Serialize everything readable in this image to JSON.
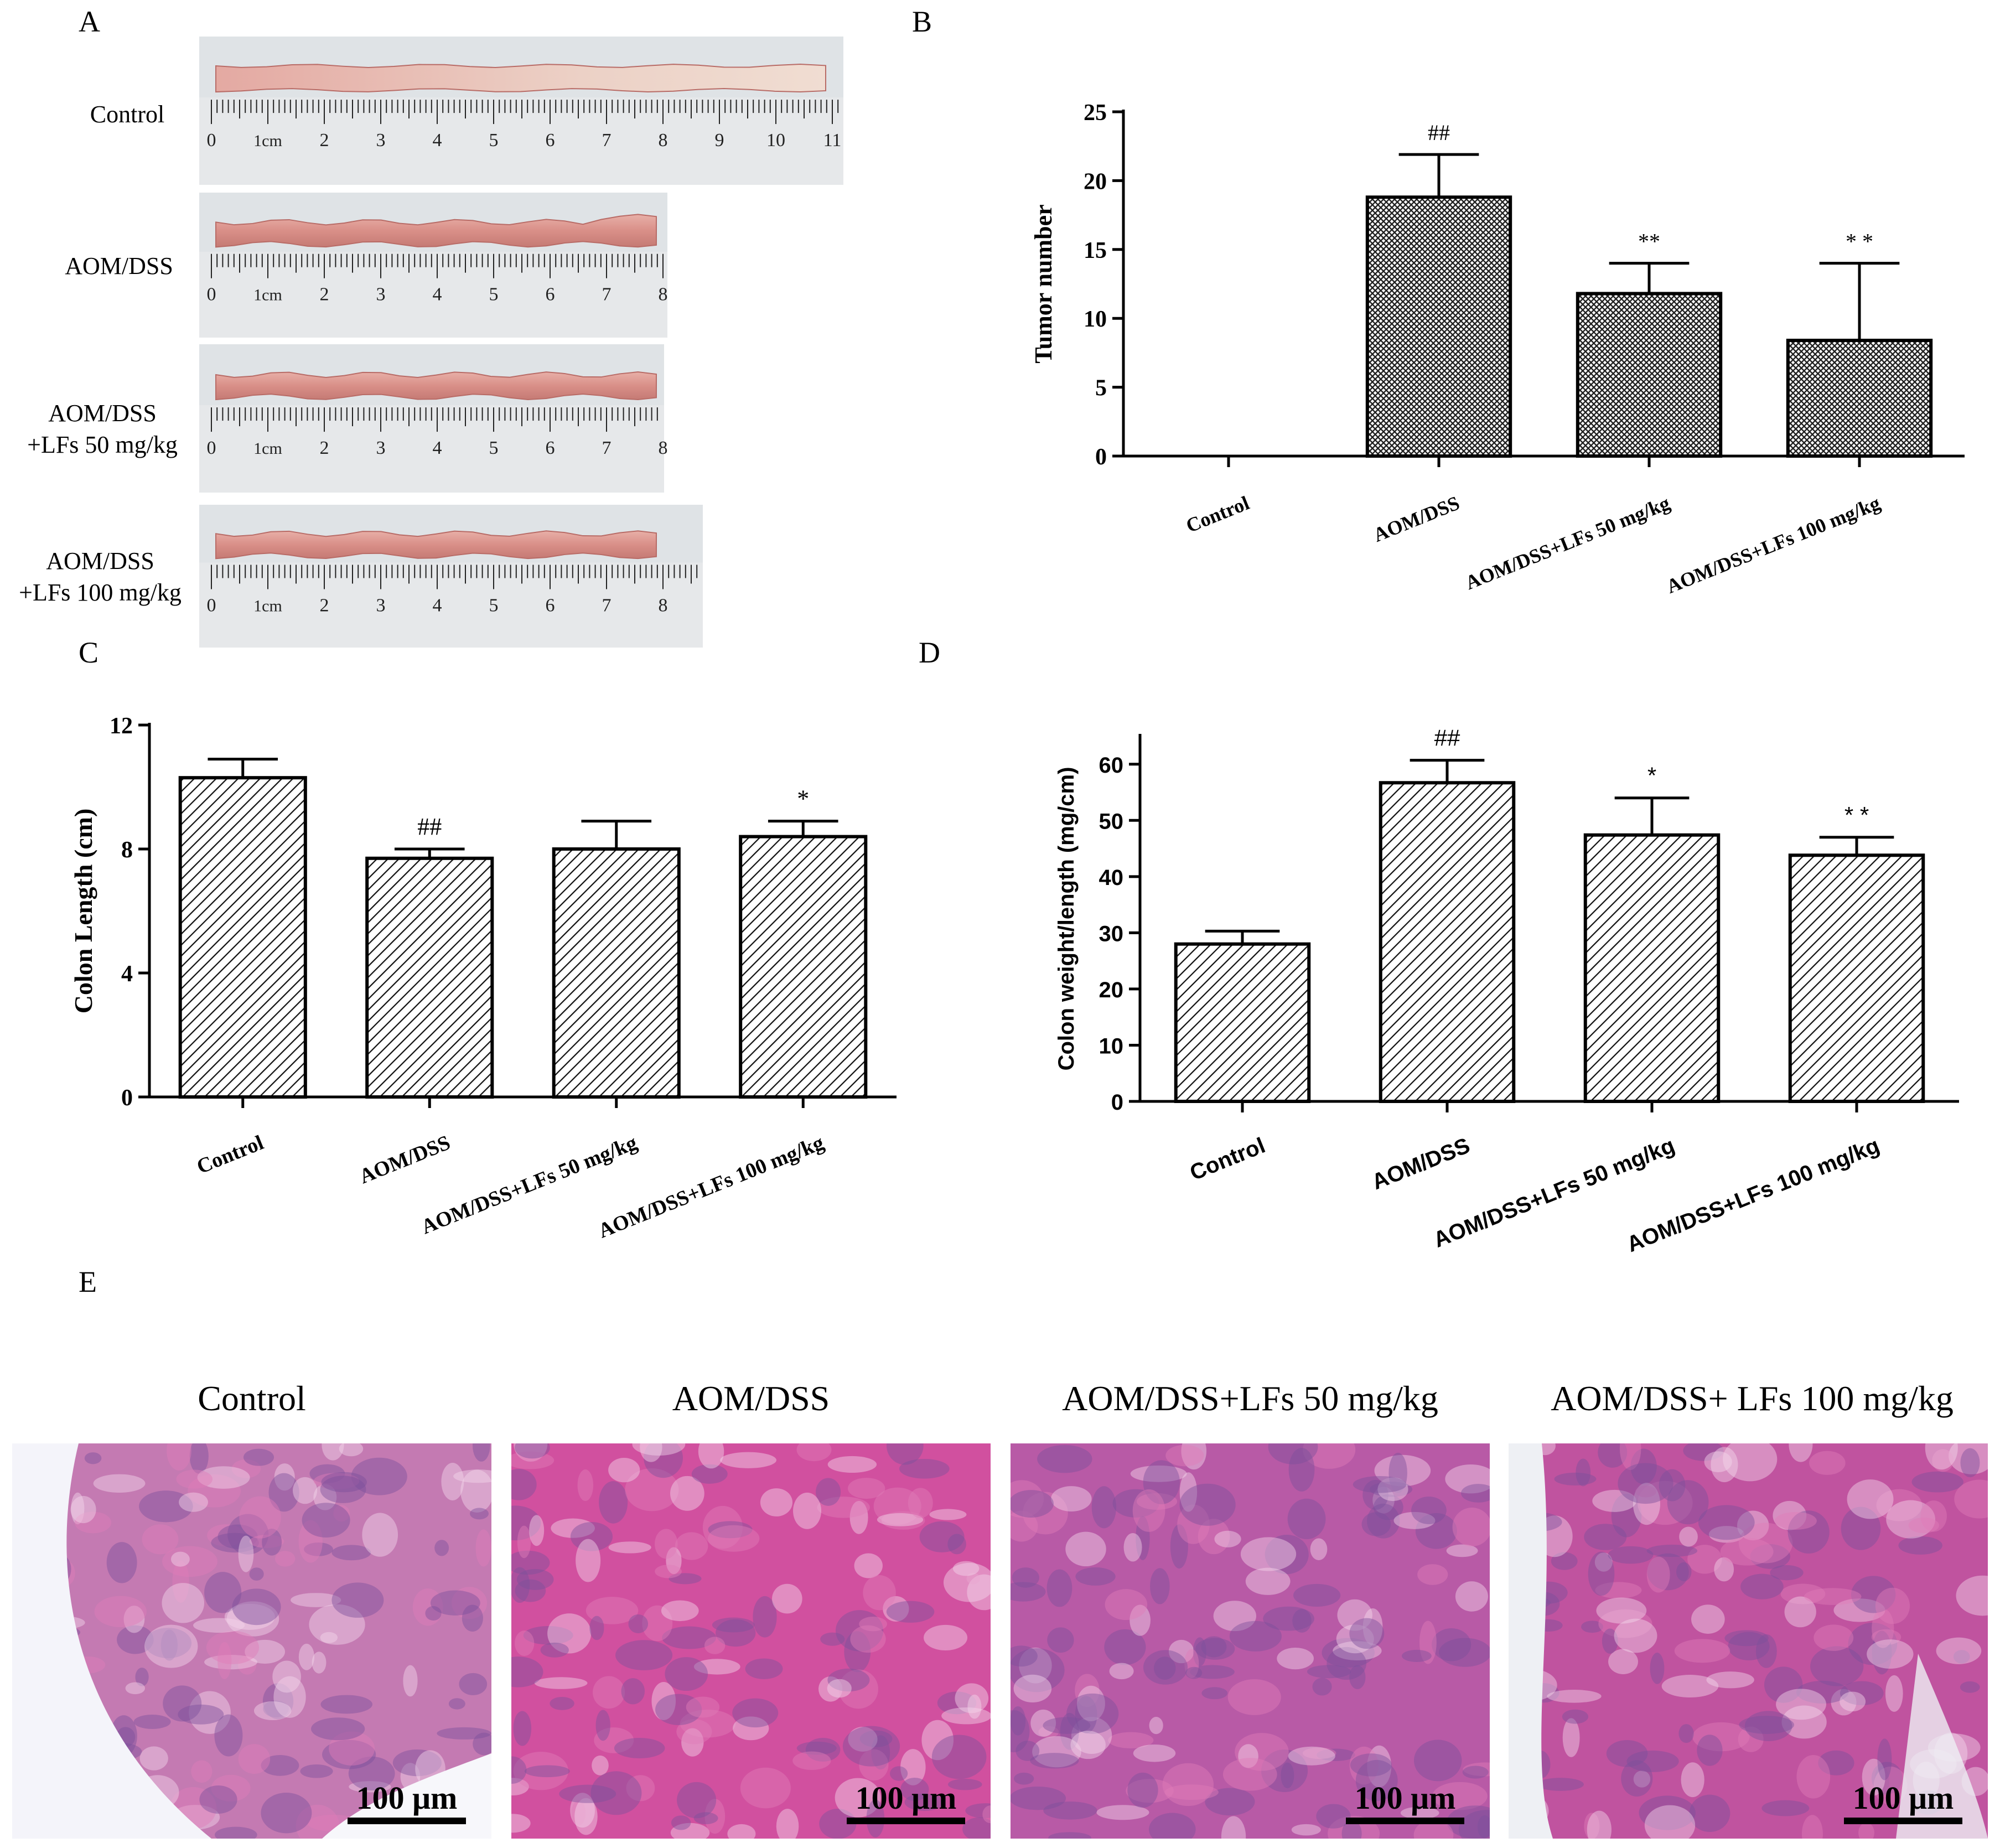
{
  "panels": {
    "A": {
      "letter": "A",
      "rows": [
        {
          "label_line1": "Control",
          "label_line2": "",
          "ruler_marks": [
            "0",
            "1cm",
            "2",
            "3",
            "4",
            "5",
            "6",
            "7",
            "8",
            "9",
            "10",
            "11"
          ]
        },
        {
          "label_line1": "AOM/DSS",
          "label_line2": "",
          "ruler_marks": [
            "0",
            "1cm",
            "2",
            "3",
            "4",
            "5",
            "6",
            "7",
            "8"
          ]
        },
        {
          "label_line1": "AOM/DSS",
          "label_line2": "+LFs 50 mg/kg",
          "ruler_marks": [
            "0",
            "1cm",
            "2",
            "3",
            "4",
            "5",
            "6",
            "7",
            "8"
          ]
        },
        {
          "label_line1": "AOM/DSS",
          "label_line2": "+LFs 100 mg/kg",
          "ruler_marks": [
            "0",
            "1cm",
            "2",
            "3",
            "4",
            "5",
            "6",
            "7",
            "8"
          ]
        }
      ]
    },
    "B": {
      "letter": "B"
    },
    "C": {
      "letter": "C"
    },
    "D": {
      "letter": "D"
    },
    "E": {
      "letter": "E",
      "images": [
        {
          "title": "Control",
          "scale": "100 μm",
          "tint": "#c47ab2"
        },
        {
          "title": "AOM/DSS",
          "scale": "100 μm",
          "tint": "#d1509f"
        },
        {
          "title": "AOM/DSS+LFs 50 mg/kg",
          "scale": "100 μm",
          "tint": "#b85aa6"
        },
        {
          "title": "AOM/DSS+ LFs 100 mg/kg",
          "scale": "100 μm",
          "tint": "#c0539f"
        }
      ]
    }
  },
  "chart_data": [
    {
      "panel": "B",
      "type": "bar",
      "categories": [
        "Control",
        "AOM/DSS",
        "AOM/DSS+LFs 50 mg/kg",
        "AOM/DSS+LFs 100 mg/kg"
      ],
      "values": [
        0,
        18.8,
        11.8,
        8.4
      ],
      "errors": [
        0,
        3.1,
        2.2,
        5.6
      ],
      "annotations": [
        "",
        "##",
        "**",
        "* *"
      ],
      "ylabel": "Tumor number",
      "ylim": [
        0,
        25
      ],
      "yticks": [
        "0",
        "5",
        "10",
        "15",
        "20",
        "25"
      ],
      "grid": false,
      "bar_pattern": "crosshatch"
    },
    {
      "panel": "C",
      "type": "bar",
      "categories": [
        "Control",
        "AOM/DSS",
        "AOM/DSS+LFs 50 mg/kg",
        "AOM/DSS+LFs 100 mg/kg"
      ],
      "values": [
        10.3,
        7.7,
        8.0,
        8.4
      ],
      "errors": [
        0.6,
        0.3,
        0.9,
        0.5
      ],
      "annotations": [
        "",
        "##",
        "",
        "*"
      ],
      "ylabel": "Colon Length (cm)",
      "ylim": [
        0,
        12
      ],
      "yticks": [
        "0",
        "4",
        "8",
        "12"
      ],
      "grid": false,
      "bar_pattern": "diagonal"
    },
    {
      "panel": "D",
      "type": "bar",
      "categories": [
        "Control",
        "AOM/DSS",
        "AOM/DSS+LFs 50 mg/kg",
        "AOM/DSS+LFs 100 mg/kg"
      ],
      "values": [
        28,
        56.7,
        47.4,
        43.8
      ],
      "errors": [
        2.3,
        4.0,
        6.6,
        3.2
      ],
      "annotations": [
        "",
        "##",
        "*",
        "* *"
      ],
      "ylabel": "Colon weight/length (mg/cm)",
      "ylim": [
        0,
        65
      ],
      "yticks": [
        "0",
        "10",
        "20",
        "30",
        "40",
        "50",
        "60"
      ],
      "grid": false,
      "bar_pattern": "diagonal"
    }
  ]
}
